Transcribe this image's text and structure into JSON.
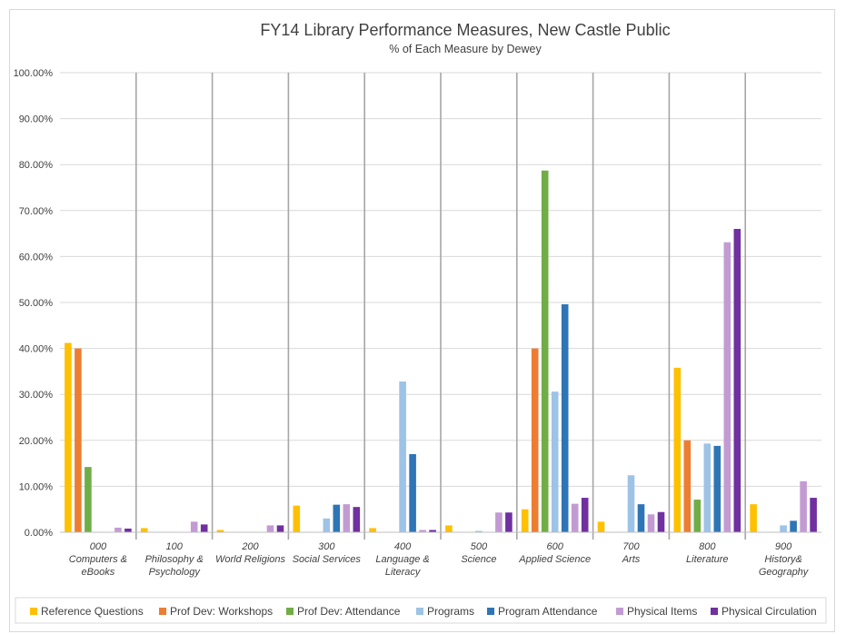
{
  "chart_data": {
    "type": "bar",
    "title": "FY14 Library Performance Measures, New Castle Public",
    "subtitle": "% of Each Measure by Dewey",
    "xlabel": "",
    "ylabel": "",
    "ylim": [
      0,
      100
    ],
    "yticks": [
      "0.00%",
      "10.00%",
      "20.00%",
      "30.00%",
      "40.00%",
      "50.00%",
      "60.00%",
      "70.00%",
      "80.00%",
      "90.00%",
      "100.00%"
    ],
    "categories": [
      [
        "000",
        "Computers &",
        "eBooks"
      ],
      [
        "100",
        "Philosophy &",
        "Psychology"
      ],
      [
        "200",
        "World Religions"
      ],
      [
        "300",
        "Social Services"
      ],
      [
        "400",
        "Language &",
        "Literacy"
      ],
      [
        "500",
        "Science"
      ],
      [
        "600",
        "Applied Science"
      ],
      [
        "700",
        "Arts"
      ],
      [
        "800",
        "Literature"
      ],
      [
        "900",
        "History&",
        "Geography"
      ]
    ],
    "series": [
      {
        "name": "Reference Questions",
        "color": "#ffc000",
        "values": [
          41.2,
          0.9,
          0.5,
          5.8,
          0.9,
          1.5,
          5.0,
          2.3,
          35.8,
          6.1
        ]
      },
      {
        "name": "Prof Dev: Workshops",
        "color": "#ed7d31",
        "values": [
          40.0,
          0,
          0,
          0,
          0,
          0,
          40.0,
          0,
          20.0,
          0
        ]
      },
      {
        "name": "Prof Dev: Attendance",
        "color": "#70ad47",
        "values": [
          14.2,
          0,
          0,
          0,
          0,
          0,
          78.7,
          0,
          7.1,
          0
        ]
      },
      {
        "name": "Programs",
        "color": "#9dc3e6",
        "values": [
          0,
          0,
          0,
          3.0,
          32.8,
          0.3,
          30.6,
          12.4,
          19.3,
          1.5
        ]
      },
      {
        "name": "Program Attendance",
        "color": "#2e75b6",
        "values": [
          0,
          0,
          0,
          6.0,
          17.0,
          0,
          49.6,
          6.1,
          18.8,
          2.5
        ]
      },
      {
        "name": "Physical Items",
        "color": "#c39bd3",
        "values": [
          1.0,
          2.3,
          1.5,
          6.1,
          0.5,
          4.3,
          6.2,
          3.9,
          63.1,
          11.1
        ]
      },
      {
        "name": "Physical Circulation",
        "color": "#7030a0",
        "values": [
          0.8,
          1.7,
          1.5,
          5.5,
          0.5,
          4.3,
          7.5,
          4.4,
          66.0,
          7.5
        ]
      }
    ]
  }
}
